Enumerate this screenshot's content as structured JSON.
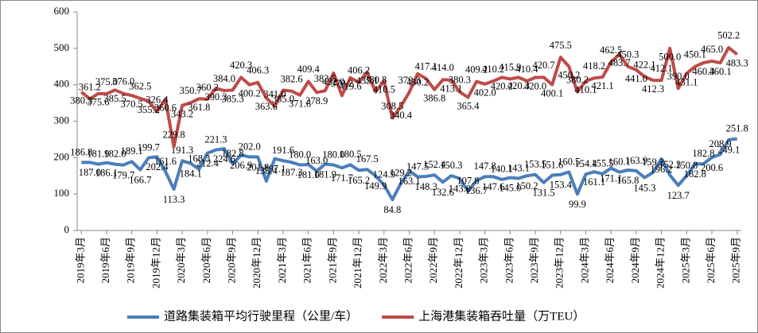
{
  "chart_data": {
    "type": "line",
    "categories": [
      "2019年3月",
      null,
      null,
      "2019年6月",
      null,
      null,
      "2019年9月",
      null,
      null,
      "2019年12月",
      null,
      null,
      "2020年3月",
      null,
      null,
      "2020年6月",
      null,
      null,
      "2020年9月",
      null,
      null,
      "2020年12月",
      null,
      null,
      "2021年3月",
      null,
      null,
      "2021年6月",
      null,
      null,
      "2021年9月",
      null,
      null,
      "2021年12月",
      null,
      null,
      "2022年3月",
      null,
      null,
      "2022年6月",
      null,
      null,
      "2022年9月",
      null,
      null,
      "2022年12月",
      null,
      null,
      "2023年3月",
      null,
      null,
      "2023年6月",
      null,
      null,
      "2023年9月",
      null,
      null,
      "2023年12月",
      null,
      null,
      "2024年3月",
      null,
      null,
      "2024年6月",
      null,
      null,
      "2024年9月",
      null,
      null,
      "2024年12月",
      null,
      null,
      "2025年3月",
      null,
      null,
      "2025年6月",
      null,
      null,
      "2025年9月"
    ],
    "series": [
      {
        "name": "道路集装箱平均行驶里程（公里/车）",
        "color": "#4a7ebb",
        "values": [
          186.8,
          187.0,
          181.9,
          186.1,
          182.0,
          179.7,
          189.1,
          166.7,
          199.7,
          202.4,
          161.6,
          113.3,
          191.3,
          184.1,
          168.3,
          212.4,
          221.3,
          224.6,
          182.8,
          206.9,
          202.0,
          201.8,
          135.4,
          197.1,
          191.6,
          187.3,
          180.0,
          181.0,
          163.0,
          181.9,
          180.0,
          171.7,
          180.5,
          165.2,
          167.5,
          149.9,
          124.9,
          84.8,
          129.2,
          163.1,
          147.5,
          148.3,
          152.4,
          132.6,
          150.3,
          143.0,
          107.8,
          136.7,
          147.8,
          147.6,
          140.1,
          145.0,
          143.1,
          150.2,
          153.5,
          131.5,
          151.6,
          153.4,
          160.5,
          99.9,
          154.4,
          161.1,
          155.5,
          171.1,
          160.1,
          165.8,
          163.9,
          145.3,
          159.2,
          196.2,
          152.3,
          123.7,
          150.8,
          182.8,
          182.8,
          200.6,
          208.9,
          249.1,
          251.8
        ],
        "value_labels": [
          "186.8",
          "187.0",
          "181.9",
          "186.1",
          "182.0",
          "179.7",
          "189.1",
          "166.7",
          "199.7",
          "202.4",
          "161.6",
          "113.3",
          "191.3",
          "184.1",
          "168.3",
          "212.4",
          "221.3",
          "224.6",
          "182.8",
          "206.9",
          "202.0",
          "201.8",
          "135.4",
          "197.1",
          "191.6",
          "187.3",
          "180.0",
          "181.0",
          "163.0",
          "181.9",
          "180.0",
          "171.7",
          "180.5",
          "165.2",
          "167.5",
          "149.9",
          "124.9",
          "84.8",
          "129.2",
          "163.1",
          "147.5",
          "148.3",
          "152.4",
          "132.6",
          "150.3",
          "143.0",
          "107.8",
          "136.7",
          "147.8",
          "147.6",
          "140.1",
          "145.0",
          "143.1",
          "150.2",
          "153.5",
          "131.5",
          "151.6",
          "153.4",
          "160.5",
          "99.9",
          "154.4",
          "161.1",
          "155.5",
          "171.1",
          "160.1",
          "165.8",
          "163.9",
          "145.3",
          "159.2",
          "196.2",
          "152.3",
          "123.7",
          "150.8",
          "182.8",
          "182.8",
          "200.6",
          "208.9",
          "249.1",
          "251.8"
        ]
      },
      {
        "name": "上海港集装箱吞吐量（万TEU）",
        "color": "#be4b48",
        "values": [
          380.3,
          361.2,
          375.6,
          375.0,
          385.5,
          376.0,
          370.5,
          362.5,
          355.2,
          326.4,
          360.6,
          229.8,
          343.2,
          350.7,
          361.8,
          360.2,
          390.3,
          384.0,
          385.3,
          420.3,
          400.2,
          406.3,
          363.6,
          341.0,
          385.0,
          382.6,
          371.6,
          409.4,
          378.9,
          383.5,
          432.0,
          370.2,
          419.6,
          406.2,
          435.1,
          380.8,
          410.5,
          308.5,
          340.4,
          379.3,
          430.2,
          417.1,
          386.8,
          414.0,
          413.1,
          380.3,
          365.4,
          409.2,
          402.0,
          410.2,
          420.2,
          415.9,
          420.3,
          410.4,
          420.0,
          420.7,
          400.1,
          475.5,
          450.2,
          380.2,
          410.1,
          418.2,
          421.1,
          462.5,
          483.7,
          450.3,
          441.0,
          422.1,
          412.3,
          412.1,
          500.0,
          390.0,
          431.1,
          450.1,
          460.3,
          465.0,
          460.1,
          502.2,
          483.3
        ],
        "value_labels": [
          "380.3",
          "361.2",
          "375.6",
          "375.0",
          "385.5",
          "376.0",
          "370.5",
          "362.5",
          "355.2",
          "326.4",
          "360.6",
          "229.8",
          "343.2",
          "350.7",
          "361.8",
          "360.2",
          "390.3",
          "384.0",
          "385.3",
          "420.3",
          "400.2",
          "406.3",
          "363.6",
          "341.0",
          "385.0",
          "382.6",
          "371.6",
          "409.4",
          "378.9",
          "383.5",
          "432.0",
          "370.2",
          "419.6",
          "406.2",
          "435.1",
          "380.8",
          "410.5",
          "308.5",
          "340.4",
          "379.3",
          "430.2",
          "417.1",
          "386.8",
          "414.0",
          "413.1",
          "380.3",
          "365.4",
          "409.2",
          "402.0",
          "410.2",
          "420.2",
          "415.9",
          "420.3",
          "410.4",
          "420.0",
          "420.7",
          "400.1",
          "475.5",
          "450.2",
          "380.2",
          "410.1",
          "418.2",
          "421.1",
          "462.5",
          "483.7",
          "450.3",
          "441.0",
          "422.1",
          "412.3",
          "412.1",
          "500.0",
          "390.0",
          "431.1",
          "450.1",
          "460.3",
          "465.0",
          "460.1",
          "502.2",
          "483.3"
        ]
      }
    ],
    "ylim": [
      0,
      600
    ],
    "yticks": [
      0,
      100,
      200,
      300,
      400,
      500,
      600
    ],
    "grid": false,
    "legend": "bottom"
  }
}
